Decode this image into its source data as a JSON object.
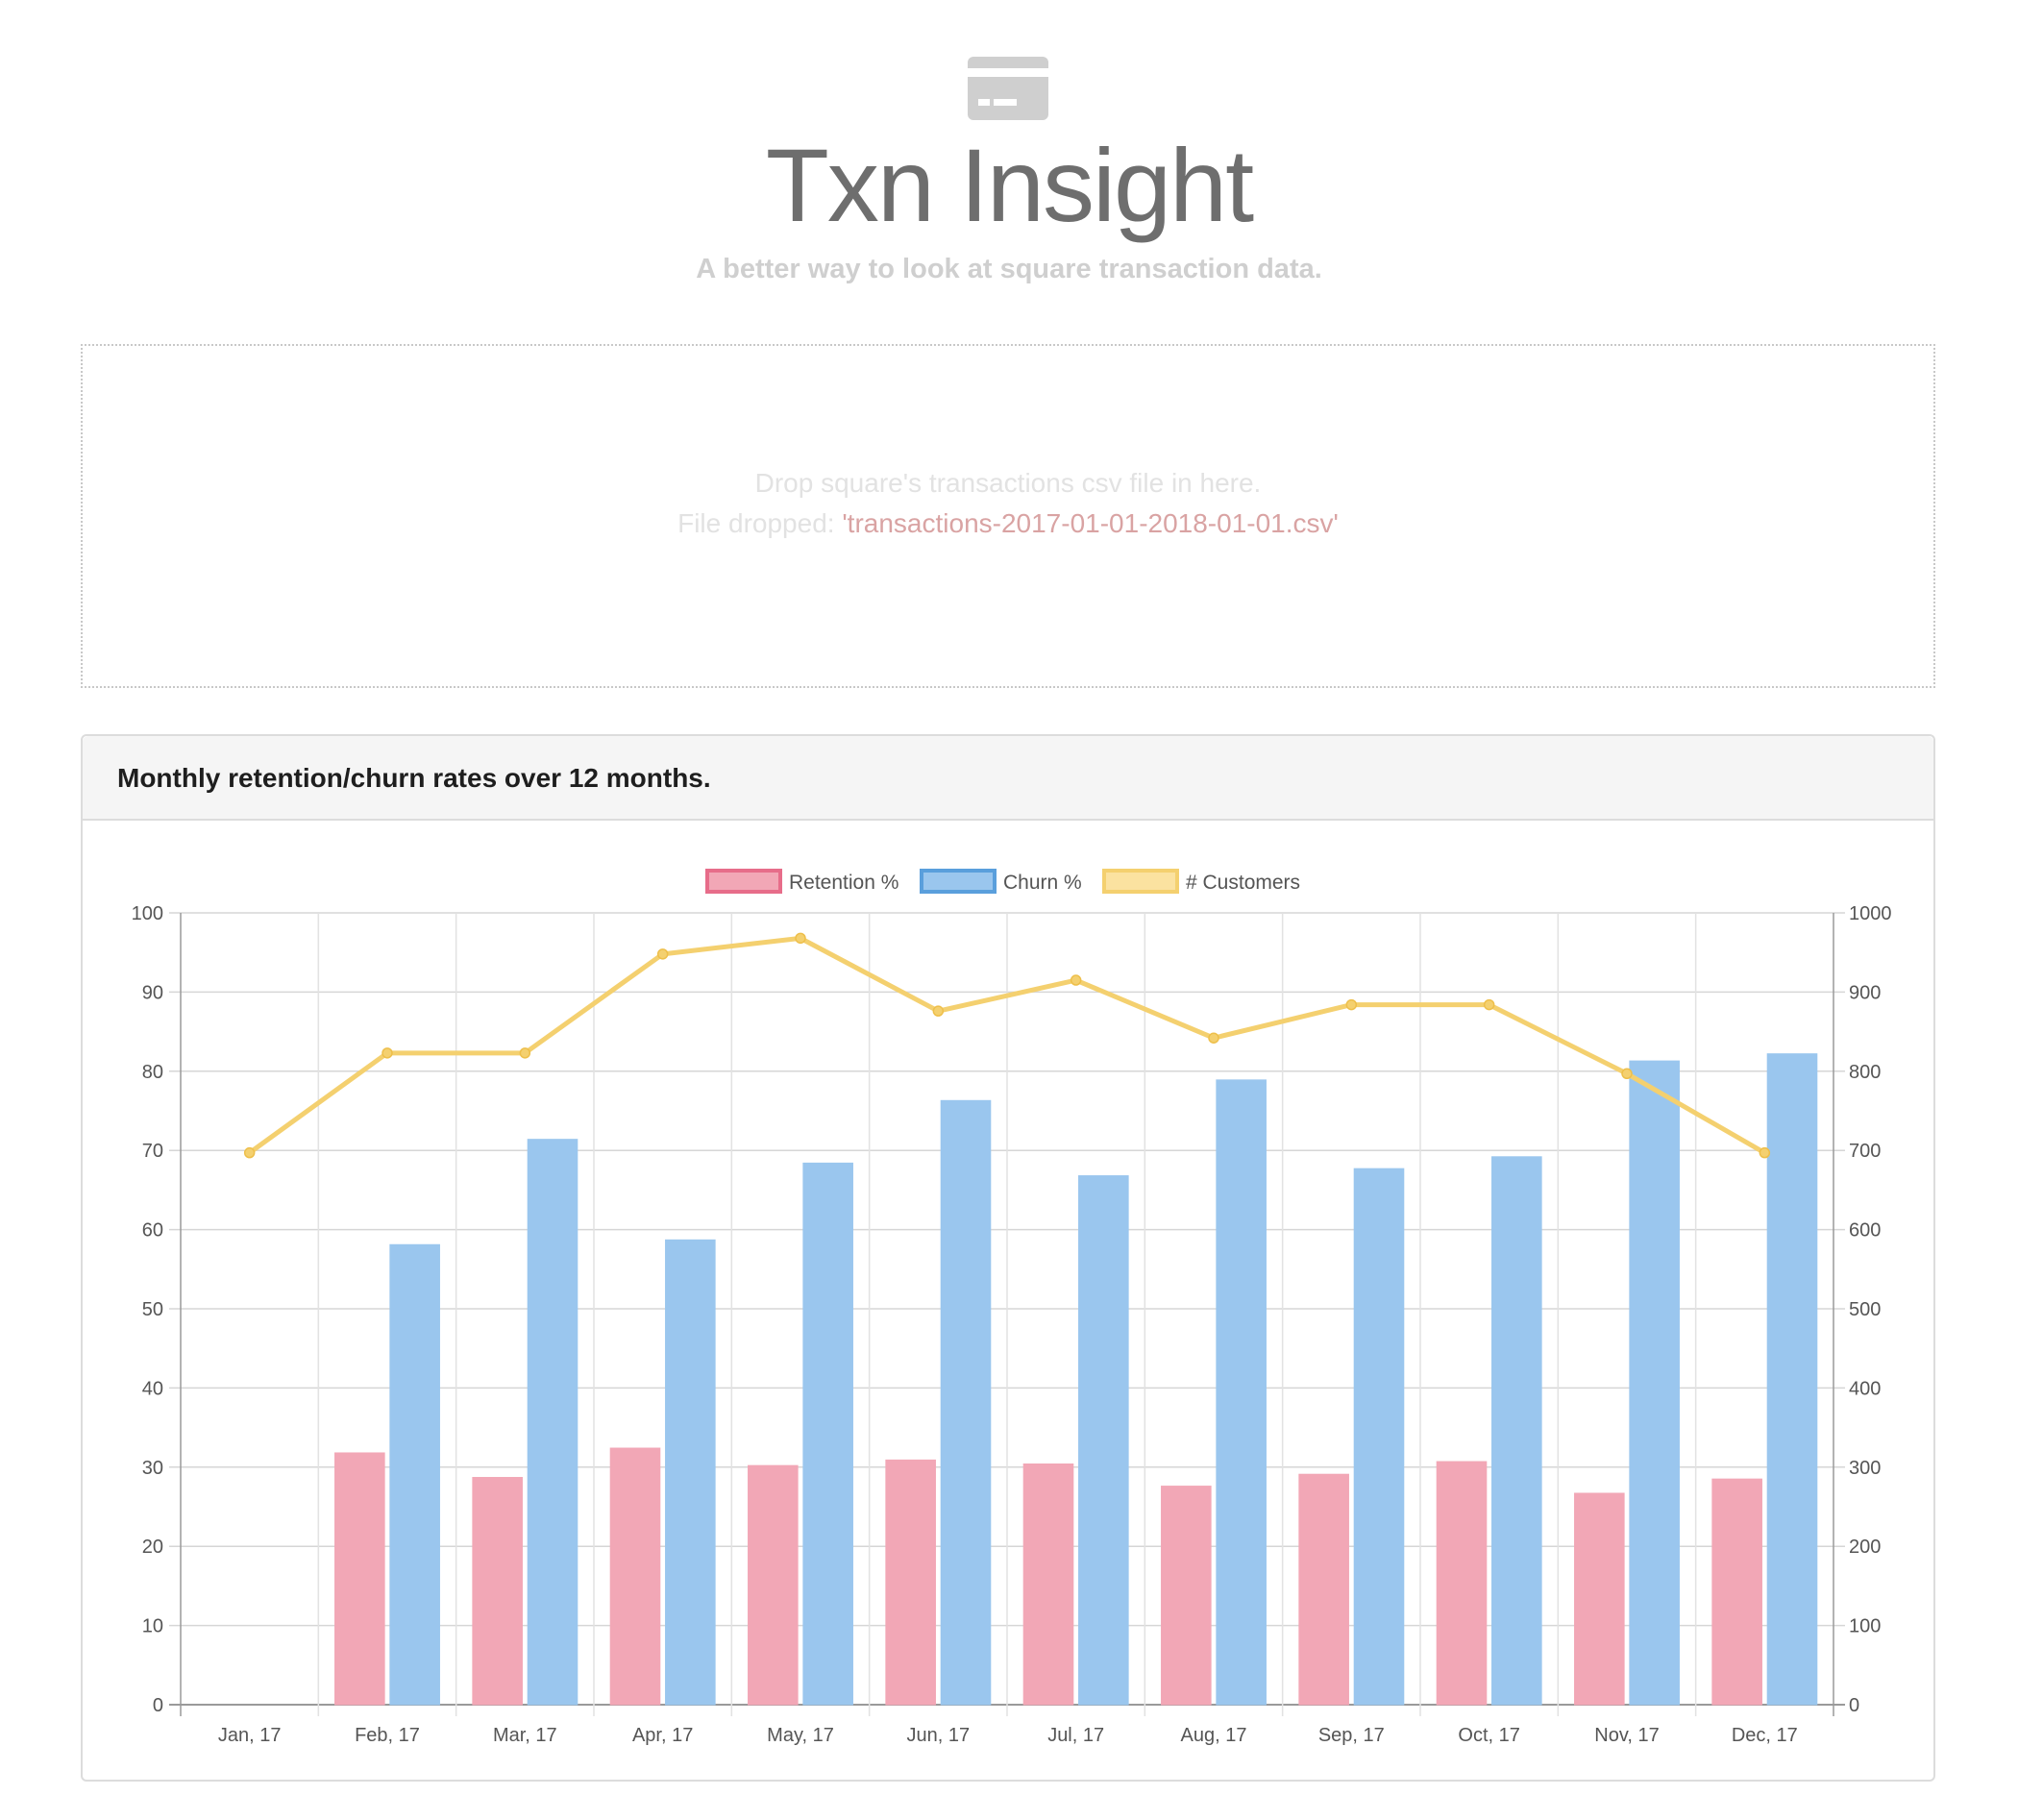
{
  "header": {
    "icon": "credit-card-icon",
    "title": "Txn Insight",
    "subtitle": "A better way to look at square transaction data."
  },
  "dropzone": {
    "instruction": "Drop square's transactions csv file in here.",
    "dropped_label": "File dropped:",
    "file_name": "'transactions-2017-01-01-2018-01-01.csv'"
  },
  "panel": {
    "title": "Monthly retention/churn rates over 12 months."
  },
  "colors": {
    "retention": "#f2a7b6",
    "retention_border": "#e76d8a",
    "churn": "#9ac6ee",
    "churn_border": "#5a9fdc",
    "customers": "#f4d06f"
  },
  "chart_data": {
    "type": "bar",
    "categories": [
      "Jan, 17",
      "Feb, 17",
      "Mar, 17",
      "Apr, 17",
      "May, 17",
      "Jun, 17",
      "Jul, 17",
      "Aug, 17",
      "Sep, 17",
      "Oct, 17",
      "Nov, 17",
      "Dec, 17"
    ],
    "series": [
      {
        "name": "Retention %",
        "type": "bar",
        "axis": "left",
        "values": [
          0,
          31.8,
          28.7,
          32.4,
          30.2,
          30.9,
          30.4,
          27.6,
          29.1,
          30.7,
          26.7,
          28.5
        ]
      },
      {
        "name": "Churn %",
        "type": "bar",
        "axis": "left",
        "values": [
          0,
          58.1,
          71.4,
          58.7,
          68.4,
          76.3,
          66.8,
          78.9,
          67.7,
          69.2,
          81.3,
          82.2
        ]
      },
      {
        "name": "# Customers",
        "type": "line",
        "axis": "right",
        "values": [
          697,
          823,
          823,
          948,
          968,
          876,
          915,
          842,
          884,
          884,
          797,
          697
        ]
      }
    ],
    "y_left": {
      "min": 0,
      "max": 100,
      "ticks": [
        0,
        10,
        20,
        30,
        40,
        50,
        60,
        70,
        80,
        90,
        100
      ]
    },
    "y_right": {
      "min": 0,
      "max": 1000,
      "ticks": [
        0,
        100,
        200,
        300,
        400,
        500,
        600,
        700,
        800,
        900,
        1000
      ]
    },
    "grid": true,
    "legend": "top-center"
  }
}
